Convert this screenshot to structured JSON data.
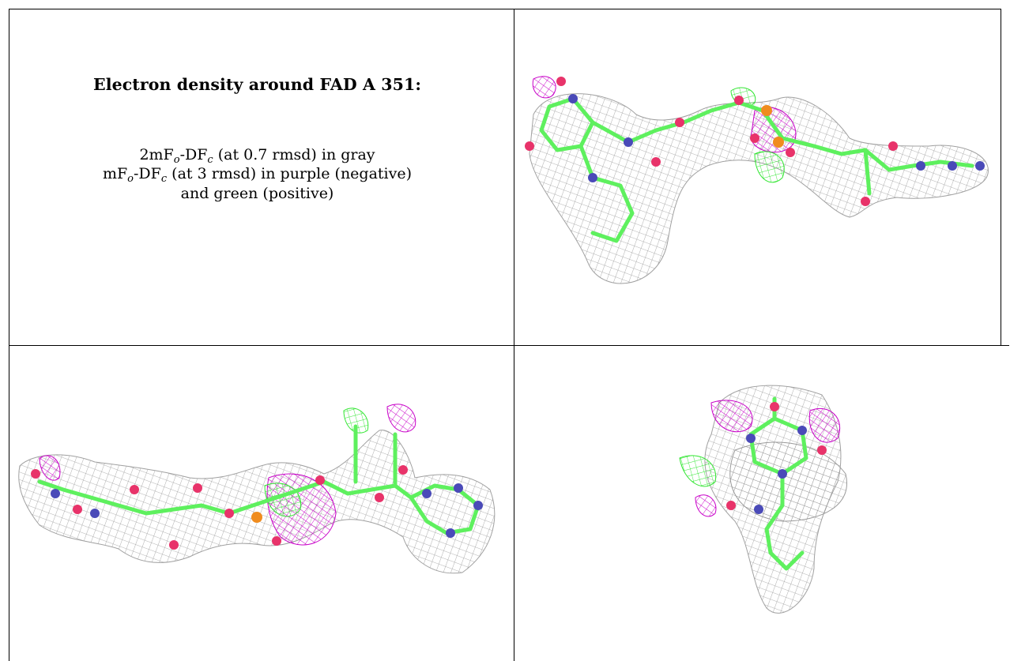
{
  "caption": {
    "title": "Electron density around FAD A 351:",
    "map1": {
      "prefix": "2mF",
      "o_sub": "o",
      "mid": "-DF",
      "c_sub": "c",
      "suffix": " (at 0.7 rmsd) in gray"
    },
    "map2": {
      "prefix": "mF",
      "o_sub": "o",
      "mid": "-DF",
      "c_sub": "c",
      "suffix": " (at 3 rmsd) in purple (negative)"
    },
    "map2_cont": "and green (positive)"
  },
  "colors": {
    "density_2fofc": "#a9a9a9",
    "density_negative": "#c800c8",
    "density_positive": "#32e632",
    "carbon": "#5ef05e",
    "oxygen": "#e8336a",
    "nitrogen": "#4a4ab8",
    "phosphorus": "#f08c1e"
  },
  "panels": [
    {
      "view": "front view"
    },
    {
      "view": "rotated view"
    },
    {
      "view": "end-on view"
    }
  ]
}
